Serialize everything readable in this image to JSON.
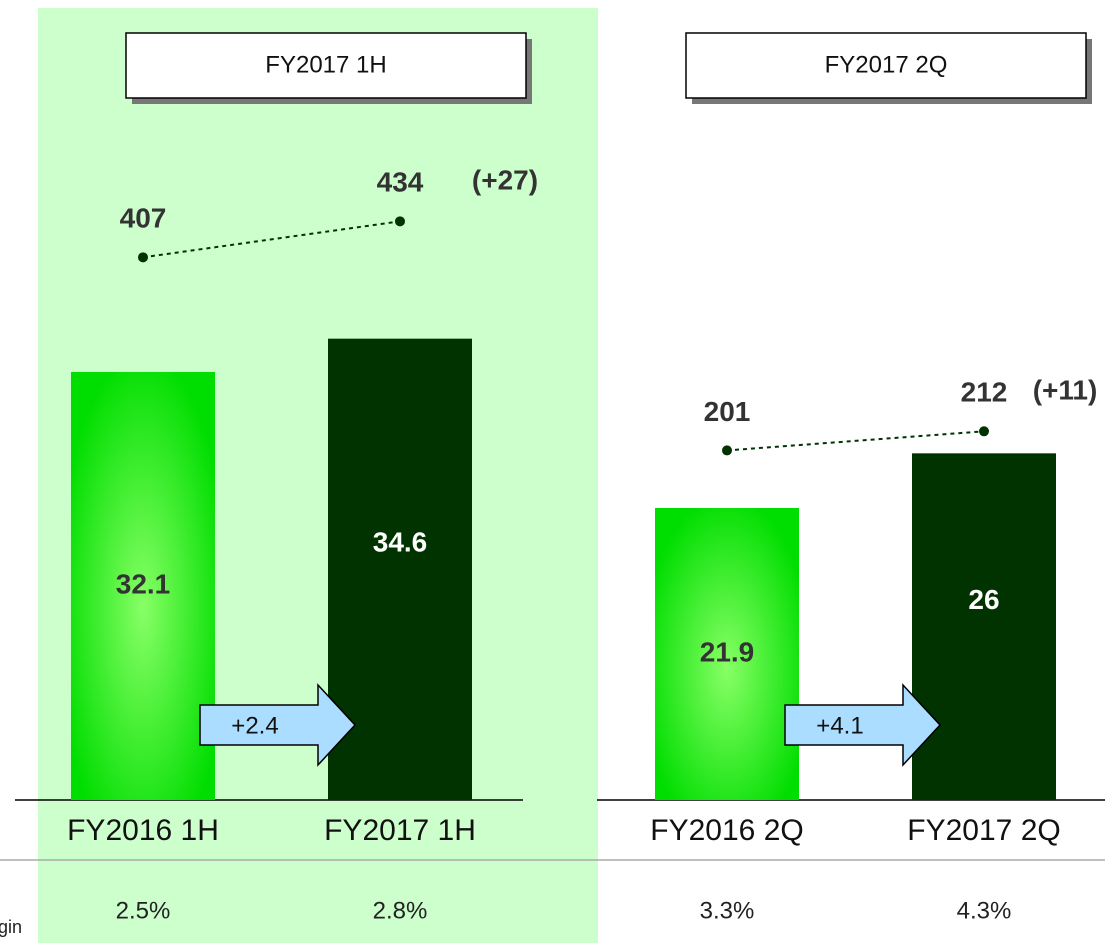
{
  "chart_data": [
    {
      "type": "bar",
      "title": "FY2017 1H",
      "highlight": true,
      "categories": [
        "FY2016 1H",
        "FY2017 1H"
      ],
      "values": [
        32.1,
        34.6
      ],
      "colors": [
        "#00dd00",
        "#003300"
      ],
      "ylim": [
        0,
        60
      ],
      "line_values": [
        407,
        434
      ],
      "y2lim": [
        0,
        600
      ],
      "change_label": "(+27)",
      "growth_label": "+2.4",
      "margins": [
        2.5,
        2.8
      ],
      "margin_labels": [
        "2.5%",
        "2.8%"
      ]
    },
    {
      "type": "bar",
      "title": "FY2017 2Q",
      "highlight": false,
      "categories": [
        "FY2016 2Q",
        "FY2017 2Q"
      ],
      "values": [
        21.9,
        26.0
      ],
      "colors": [
        "#00dd00",
        "#003300"
      ],
      "ylim": [
        0,
        60
      ],
      "line_values": [
        201,
        212
      ],
      "y2lim": [
        0,
        460
      ],
      "change_label": "(+11)",
      "growth_label": "+4.1",
      "margins": [
        3.3,
        4.3
      ],
      "margin_labels": [
        "3.3%",
        "4.3%"
      ]
    }
  ],
  "margin_row_label": "rgin"
}
